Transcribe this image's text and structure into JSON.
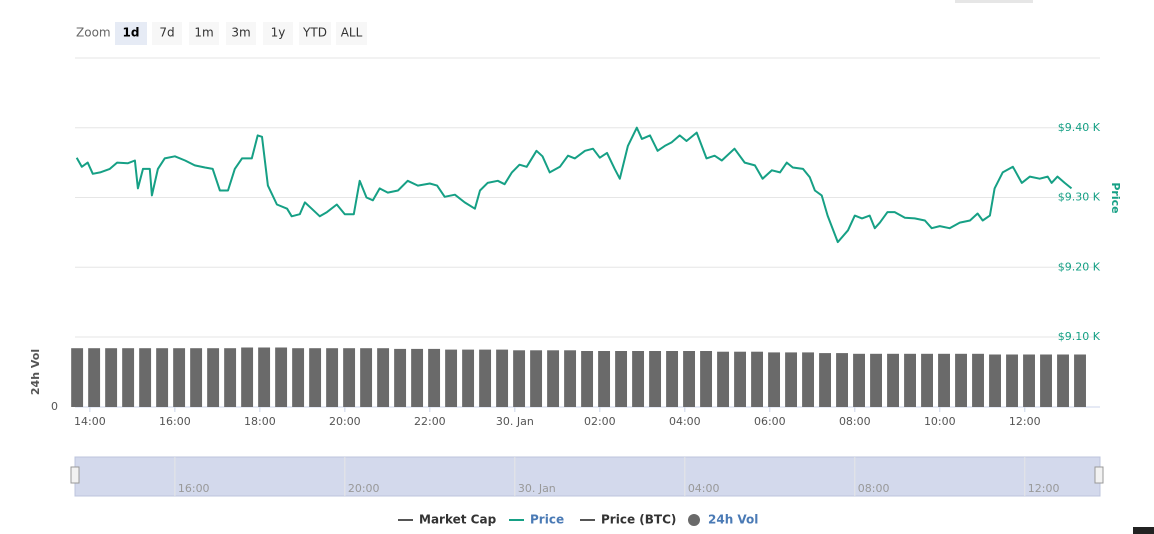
{
  "chart_data": {
    "type": "line",
    "range_selector": {
      "label": "Zoom",
      "buttons": [
        "1d",
        "7d",
        "1m",
        "3m",
        "1y",
        "YTD",
        "ALL"
      ],
      "selected": 0
    },
    "xlim": [
      13.65,
      37.77
    ],
    "xticks": [
      {
        "value": 14,
        "label": "14:00"
      },
      {
        "value": 16,
        "label": "16:00"
      },
      {
        "value": 18,
        "label": "18:00"
      },
      {
        "value": 20,
        "label": "20:00"
      },
      {
        "value": 22,
        "label": "22:00"
      },
      {
        "value": 24,
        "label": "30. Jan"
      },
      {
        "value": 26,
        "label": "02:00"
      },
      {
        "value": 28,
        "label": "04:00"
      },
      {
        "value": 30,
        "label": "06:00"
      },
      {
        "value": 32,
        "label": "08:00"
      },
      {
        "value": 34,
        "label": "10:00"
      },
      {
        "value": 36,
        "label": "12:00"
      }
    ],
    "ylabel": "Price",
    "ylim": [
      9.1,
      9.5
    ],
    "yticks": [
      {
        "value": 9.1,
        "label": "$9.10 K"
      },
      {
        "value": 9.2,
        "label": "$9.20 K"
      },
      {
        "value": 9.3,
        "label": "$9.30 K"
      },
      {
        "value": 9.4,
        "label": "$9.40 K"
      }
    ],
    "y2label": "24h Vol",
    "y2lim": [
      0,
      100
    ],
    "y2ticks": [
      0
    ],
    "navigator_xticks": [
      {
        "value": 16,
        "label": "16:00"
      },
      {
        "value": 20,
        "label": "20:00"
      },
      {
        "value": 24,
        "label": "30. Jan"
      },
      {
        "value": 28,
        "label": "04:00"
      },
      {
        "value": 32,
        "label": "08:00"
      },
      {
        "value": 36,
        "label": "12:00"
      }
    ],
    "grid": true,
    "legend": "bottom",
    "series": [
      {
        "name": "Market Cap",
        "color": "#555555",
        "visible": false
      },
      {
        "name": "Price",
        "color": "#16a085",
        "visible": true,
        "x": [
          13.69,
          13.81,
          13.95,
          14.07,
          14.24,
          14.47,
          14.64,
          14.89,
          15.06,
          15.13,
          15.25,
          15.41,
          15.46,
          15.6,
          15.76,
          16.0,
          16.24,
          16.47,
          16.71,
          16.89,
          17.06,
          17.25,
          17.41,
          17.58,
          17.81,
          17.95,
          18.05,
          18.19,
          18.4,
          18.64,
          18.75,
          18.94,
          19.06,
          19.22,
          19.41,
          19.58,
          19.81,
          20.0,
          20.21,
          20.35,
          20.51,
          20.66,
          20.82,
          21.01,
          21.25,
          21.48,
          21.72,
          22.0,
          22.17,
          22.35,
          22.59,
          22.82,
          23.06,
          23.18,
          23.36,
          23.6,
          23.76,
          23.93,
          24.11,
          24.28,
          24.51,
          24.65,
          24.82,
          25.06,
          25.25,
          25.41,
          25.65,
          25.84,
          26.0,
          26.17,
          26.35,
          26.47,
          26.66,
          26.87,
          26.99,
          27.18,
          27.36,
          27.53,
          27.69,
          27.88,
          28.04,
          28.28,
          28.51,
          28.7,
          28.87,
          29.17,
          29.41,
          29.65,
          29.83,
          30.05,
          30.24,
          30.4,
          30.54,
          30.78,
          30.94,
          31.06,
          31.22,
          31.36,
          31.6,
          31.84,
          32.0,
          32.17,
          32.35,
          32.47,
          32.59,
          32.77,
          32.94,
          33.18,
          33.41,
          33.65,
          33.81,
          34.0,
          34.23,
          34.47,
          34.71,
          34.89,
          35.01,
          35.18,
          35.29,
          35.48,
          35.72,
          35.93,
          36.12,
          36.35,
          36.54,
          36.63,
          36.77,
          36.94,
          37.1
        ],
        "values": [
          9.357,
          9.344,
          9.35,
          9.334,
          9.336,
          9.341,
          9.35,
          9.349,
          9.353,
          9.313,
          9.341,
          9.341,
          9.303,
          9.341,
          9.356,
          9.359,
          9.353,
          9.346,
          9.343,
          9.341,
          9.31,
          9.31,
          9.341,
          9.356,
          9.356,
          9.389,
          9.387,
          9.317,
          9.29,
          9.284,
          9.273,
          9.276,
          9.293,
          9.284,
          9.273,
          9.279,
          9.29,
          9.276,
          9.276,
          9.324,
          9.3,
          9.296,
          9.313,
          9.307,
          9.31,
          9.324,
          9.317,
          9.32,
          9.317,
          9.301,
          9.304,
          9.293,
          9.284,
          9.31,
          9.321,
          9.324,
          9.319,
          9.336,
          9.347,
          9.344,
          9.367,
          9.359,
          9.336,
          9.344,
          9.36,
          9.356,
          9.367,
          9.37,
          9.357,
          9.364,
          9.341,
          9.327,
          9.374,
          9.4,
          9.384,
          9.389,
          9.367,
          9.374,
          9.379,
          9.389,
          9.381,
          9.393,
          9.356,
          9.36,
          9.353,
          9.37,
          9.35,
          9.346,
          9.327,
          9.339,
          9.336,
          9.35,
          9.343,
          9.341,
          9.329,
          9.31,
          9.303,
          9.274,
          9.236,
          9.253,
          9.274,
          9.27,
          9.274,
          9.256,
          9.264,
          9.279,
          9.279,
          9.271,
          9.27,
          9.267,
          9.256,
          9.259,
          9.256,
          9.264,
          9.267,
          9.277,
          9.267,
          9.274,
          9.313,
          9.336,
          9.344,
          9.321,
          9.33,
          9.327,
          9.33,
          9.321,
          9.33,
          9.321,
          9.313
        ]
      },
      {
        "name": "Price (BTC)",
        "color": "#555555",
        "visible": false
      },
      {
        "name": "24h Vol",
        "color": "#6a6a6a",
        "visible": true,
        "axis": "y2",
        "type": "bar",
        "x": [
          13.7,
          14.1,
          14.5,
          14.9,
          15.3,
          15.7,
          16.1,
          16.5,
          16.9,
          17.3,
          17.7,
          18.1,
          18.5,
          18.9,
          19.3,
          19.7,
          20.1,
          20.5,
          20.9,
          21.3,
          21.7,
          22.1,
          22.5,
          22.9,
          23.3,
          23.7,
          24.1,
          24.5,
          24.9,
          25.3,
          25.7,
          26.1,
          26.5,
          26.9,
          27.3,
          27.7,
          28.1,
          28.5,
          28.9,
          29.3,
          29.7,
          30.1,
          30.5,
          30.9,
          31.3,
          31.7,
          32.1,
          32.5,
          32.9,
          33.3,
          33.7,
          34.1,
          34.5,
          34.9,
          35.3,
          35.7,
          36.1,
          36.5,
          36.9,
          37.3
        ],
        "values": [
          84,
          84,
          84,
          84,
          84,
          84,
          84,
          84,
          84,
          84,
          85,
          85,
          85,
          84,
          84,
          84,
          84,
          84,
          84,
          83,
          83,
          83,
          82,
          82,
          82,
          82,
          81,
          81,
          81,
          81,
          80,
          80,
          80,
          80,
          80,
          80,
          80,
          80,
          79,
          79,
          79,
          78,
          78,
          78,
          77,
          77,
          76,
          76,
          76,
          76,
          76,
          76,
          76,
          76,
          75,
          75,
          75,
          75,
          75,
          75
        ]
      }
    ]
  }
}
